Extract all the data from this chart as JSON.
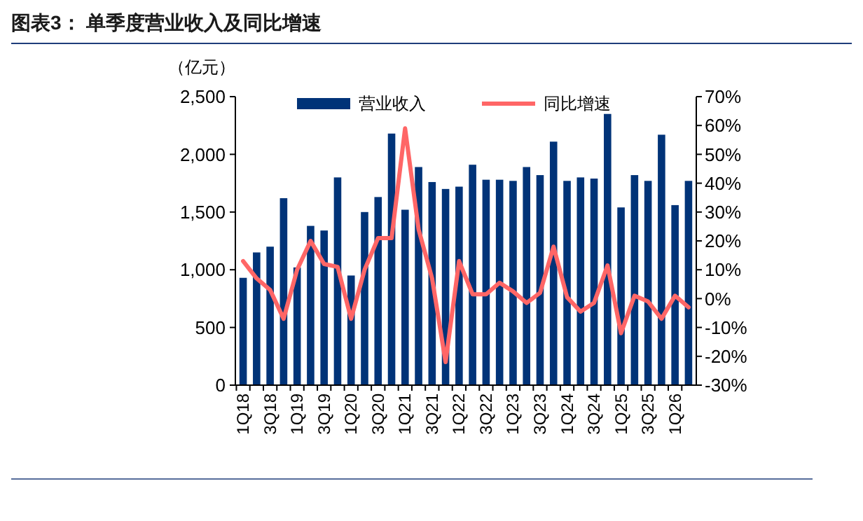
{
  "chart_data": {
    "type": "bar",
    "title": "图表3： 单季度营业收入及同比增速",
    "ylabel": "（亿元）",
    "categories": [
      "1Q18",
      null,
      "3Q18",
      null,
      "1Q19",
      null,
      "3Q19",
      null,
      "1Q20",
      null,
      "3Q20",
      null,
      "1Q21",
      null,
      "3Q21",
      null,
      "1Q22",
      null,
      "3Q22",
      null,
      "1Q23",
      null,
      "3Q23",
      null,
      "1Q24",
      null,
      "3Q24",
      null,
      "1Q25",
      null,
      "3Q25",
      null,
      "1Q26",
      null
    ],
    "series": [
      {
        "name": "营业收入",
        "color": "#003378",
        "values": [
          930,
          1150,
          1200,
          1620,
          1020,
          1380,
          1340,
          1800,
          950,
          1500,
          1630,
          2180,
          1520,
          1890,
          1760,
          1700,
          1720,
          1910,
          1780,
          1780,
          1770,
          1890,
          1820,
          2110,
          1770,
          1800,
          1790,
          2350,
          1540,
          1820,
          1770,
          2170,
          1560,
          1770
        ]
      },
      {
        "name": "同比增速",
        "type": "line",
        "axis": "y2",
        "color": "#ff6666",
        "values": [
          13,
          7,
          3,
          -7,
          10,
          20,
          12,
          11,
          -7,
          10,
          21,
          21,
          59,
          24,
          7,
          -22,
          13,
          1.5,
          1.5,
          5.5,
          2.5,
          -1.5,
          2,
          18,
          0.5,
          -4.5,
          -1.5,
          11.5,
          -12,
          1,
          -1,
          -7,
          1,
          -3
        ]
      }
    ],
    "ylim": [
      0,
      2500
    ],
    "yticks": [
      0,
      {
        "value": 500,
        "label": "500"
      },
      {
        "value": 1000,
        "label": "1,000"
      },
      {
        "value": 1500,
        "label": "1,500"
      },
      {
        "value": 2000,
        "label": "2,000"
      },
      {
        "value": 2500,
        "label": "2,500"
      }
    ],
    "y2lim": [
      -30,
      70
    ],
    "y2ticks": [
      {
        "value": -30,
        "label": "-30%"
      },
      {
        "value": -20,
        "label": "-20%"
      },
      {
        "value": -10,
        "label": "-10%"
      },
      {
        "value": 0,
        "label": "0%"
      },
      {
        "value": 10,
        "label": "10%"
      },
      {
        "value": 20,
        "label": "20%"
      },
      {
        "value": 30,
        "label": "30%"
      },
      {
        "value": 40,
        "label": "40%"
      },
      {
        "value": 50,
        "label": "50%"
      },
      {
        "value": 60,
        "label": "60%"
      },
      {
        "value": 70,
        "label": "70%"
      }
    ],
    "legend": "top",
    "grid": false
  }
}
